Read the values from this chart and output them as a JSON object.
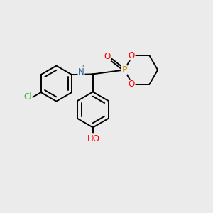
{
  "bg_color": "#ebebeb",
  "atom_colors": {
    "C": "#000000",
    "N": "#2060a0",
    "O": "#ff0000",
    "P": "#cc8800",
    "Cl": "#33bb33",
    "H": "#606060"
  },
  "bond_color": "#000000",
  "bond_width": 1.4,
  "figsize": [
    3.0,
    3.0
  ],
  "dpi": 100
}
